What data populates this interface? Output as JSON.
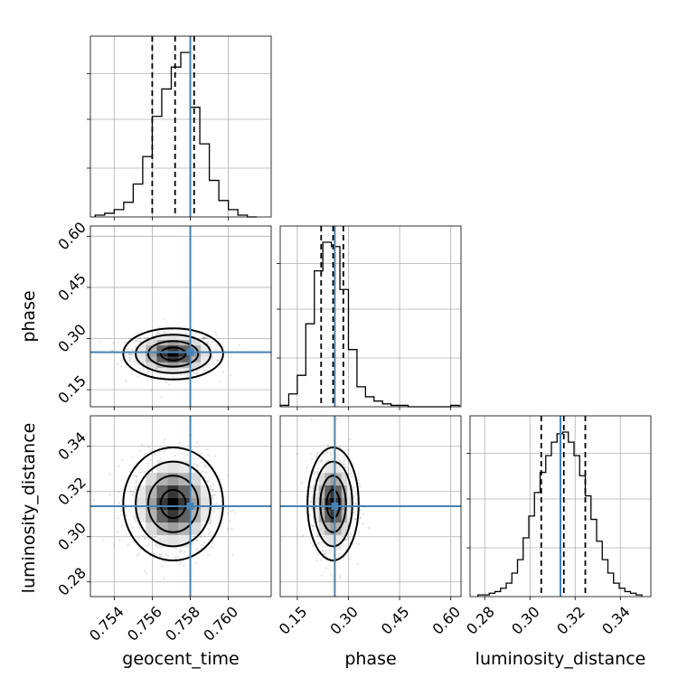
{
  "chart_data": {
    "type": "corner",
    "parameters": [
      {
        "name": "geocent_time",
        "label": "geocent_time",
        "mean": 0.7571,
        "std": 0.00105,
        "range": [
          0.75275,
          0.76225
        ],
        "ticks": [
          "0.754",
          "0.756",
          "0.758",
          "0.760"
        ],
        "tick_values": [
          0.754,
          0.756,
          0.758,
          0.76
        ],
        "truth": 0.758,
        "quantiles": [
          0.756,
          0.7572,
          0.7582
        ]
      },
      {
        "name": "phase",
        "label": "phase",
        "mean": 0.255,
        "std": 0.03,
        "range": [
          0.1,
          0.63
        ],
        "ticks": [
          "0.15",
          "0.30",
          "0.45",
          "0.60"
        ],
        "tick_values": [
          0.15,
          0.3,
          0.45,
          0.6
        ],
        "truth": 0.26,
        "quantiles": [
          0.22,
          0.255,
          0.285
        ]
      },
      {
        "name": "luminosity_distance",
        "label": "luminosity_distance",
        "mean": 0.3145,
        "std": 0.01,
        "range": [
          0.2735,
          0.3535
        ],
        "ticks": [
          "0.28",
          "0.30",
          "0.32",
          "0.34"
        ],
        "tick_values": [
          0.28,
          0.3,
          0.32,
          0.34
        ],
        "truth": 0.3135,
        "quantiles": [
          0.305,
          0.315,
          0.3245
        ]
      }
    ],
    "marginals": [
      {
        "parameter": "geocent_time",
        "bins": [
          0.753,
          0.7535,
          0.754,
          0.7545,
          0.755,
          0.7555,
          0.756,
          0.7565,
          0.757,
          0.7575,
          0.758,
          0.7585,
          0.759,
          0.7595,
          0.76,
          0.7605,
          0.761,
          0.7615
        ],
        "counts": [
          1,
          2,
          4,
          8,
          18,
          33,
          55,
          70,
          82,
          90,
          60,
          40,
          20,
          9,
          4,
          1,
          0
        ]
      },
      {
        "parameter": "phase",
        "bins": [
          0.1,
          0.125,
          0.15,
          0.175,
          0.2,
          0.225,
          0.25,
          0.275,
          0.3,
          0.325,
          0.35,
          0.375,
          0.4,
          0.425,
          0.45,
          0.475,
          0.5,
          0.525,
          0.55,
          0.575,
          0.6,
          0.625
        ],
        "counts": [
          1,
          9,
          22,
          58,
          95,
          115,
          112,
          82,
          40,
          14,
          7,
          4,
          2,
          1,
          1,
          0,
          0,
          0,
          0,
          0,
          1
        ]
      },
      {
        "parameter": "luminosity_distance",
        "bins": [
          0.277,
          0.2795,
          0.282,
          0.2845,
          0.287,
          0.2895,
          0.292,
          0.2945,
          0.297,
          0.2995,
          0.302,
          0.3045,
          0.307,
          0.3095,
          0.312,
          0.3145,
          0.317,
          0.3195,
          0.322,
          0.3245,
          0.327,
          0.3295,
          0.332,
          0.3345,
          0.337,
          0.3395,
          0.342,
          0.3445,
          0.347,
          0.3495
        ],
        "counts": [
          1,
          1,
          2,
          3,
          5,
          8,
          14,
          22,
          35,
          48,
          62,
          74,
          84,
          92,
          97,
          98,
          92,
          84,
          72,
          60,
          46,
          33,
          22,
          14,
          8,
          5,
          3,
          2,
          1
        ]
      }
    ],
    "contour_levels_sigma": [
      0.5,
      1.0,
      1.5,
      2.0
    ],
    "truth_color": "#4682b4",
    "grid": true
  }
}
